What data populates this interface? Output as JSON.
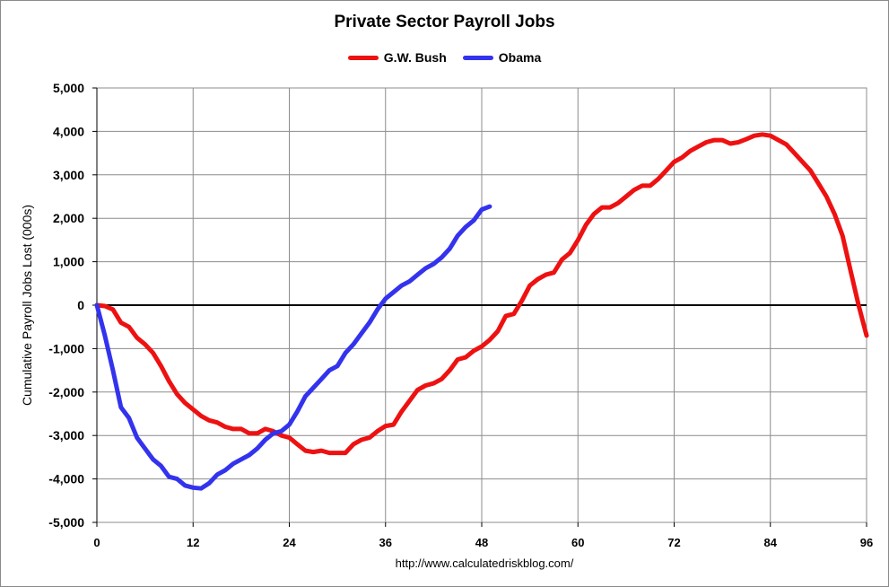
{
  "chart_data": {
    "type": "line",
    "title": "Private Sector Payroll Jobs",
    "xlabel": "",
    "ylabel": "Cumulative Payroll Jobs Lost (000s)",
    "xlim": [
      0,
      96
    ],
    "ylim": [
      -5000,
      5000
    ],
    "x_ticks": [
      "0",
      "12",
      "24",
      "36",
      "48",
      "60",
      "72",
      "84",
      "96"
    ],
    "y_ticks": [
      "5,000",
      "4,000",
      "3,000",
      "2,000",
      "1,000",
      "0",
      "-1,000",
      "-2,000",
      "-3,000",
      "-4,000",
      "-5,000"
    ],
    "grid": true,
    "legend_position": "top-center",
    "series": [
      {
        "name": "G.W. Bush",
        "color": "#ee1111",
        "points": [
          [
            0,
            0
          ],
          [
            1,
            -20
          ],
          [
            2,
            -100
          ],
          [
            3,
            -400
          ],
          [
            4,
            -500
          ],
          [
            5,
            -750
          ],
          [
            6,
            -900
          ],
          [
            7,
            -1100
          ],
          [
            8,
            -1400
          ],
          [
            9,
            -1750
          ],
          [
            10,
            -2050
          ],
          [
            11,
            -2250
          ],
          [
            12,
            -2400
          ],
          [
            13,
            -2550
          ],
          [
            14,
            -2650
          ],
          [
            15,
            -2700
          ],
          [
            16,
            -2800
          ],
          [
            17,
            -2850
          ],
          [
            18,
            -2850
          ],
          [
            19,
            -2950
          ],
          [
            20,
            -2950
          ],
          [
            21,
            -2850
          ],
          [
            22,
            -2900
          ],
          [
            23,
            -3000
          ],
          [
            24,
            -3050
          ],
          [
            25,
            -3200
          ],
          [
            26,
            -3350
          ],
          [
            27,
            -3380
          ],
          [
            28,
            -3350
          ],
          [
            29,
            -3400
          ],
          [
            30,
            -3400
          ],
          [
            31,
            -3400
          ],
          [
            32,
            -3200
          ],
          [
            33,
            -3100
          ],
          [
            34,
            -3050
          ],
          [
            35,
            -2900
          ],
          [
            36,
            -2780
          ],
          [
            37,
            -2750
          ],
          [
            38,
            -2450
          ],
          [
            39,
            -2200
          ],
          [
            40,
            -1950
          ],
          [
            41,
            -1850
          ],
          [
            42,
            -1800
          ],
          [
            43,
            -1700
          ],
          [
            44,
            -1500
          ],
          [
            45,
            -1250
          ],
          [
            46,
            -1200
          ],
          [
            47,
            -1050
          ],
          [
            48,
            -950
          ],
          [
            49,
            -800
          ],
          [
            50,
            -600
          ],
          [
            51,
            -250
          ],
          [
            52,
            -200
          ],
          [
            53,
            100
          ],
          [
            54,
            450
          ],
          [
            55,
            600
          ],
          [
            56,
            700
          ],
          [
            57,
            750
          ],
          [
            58,
            1050
          ],
          [
            59,
            1200
          ],
          [
            60,
            1500
          ],
          [
            61,
            1850
          ],
          [
            62,
            2100
          ],
          [
            63,
            2250
          ],
          [
            64,
            2250
          ],
          [
            65,
            2350
          ],
          [
            66,
            2500
          ],
          [
            67,
            2650
          ],
          [
            68,
            2750
          ],
          [
            69,
            2750
          ],
          [
            70,
            2900
          ],
          [
            71,
            3100
          ],
          [
            72,
            3300
          ],
          [
            73,
            3400
          ],
          [
            74,
            3550
          ],
          [
            75,
            3650
          ],
          [
            76,
            3750
          ],
          [
            77,
            3800
          ],
          [
            78,
            3800
          ],
          [
            79,
            3720
          ],
          [
            80,
            3750
          ],
          [
            81,
            3820
          ],
          [
            82,
            3900
          ],
          [
            83,
            3930
          ],
          [
            84,
            3900
          ],
          [
            85,
            3800
          ],
          [
            86,
            3700
          ],
          [
            87,
            3500
          ],
          [
            88,
            3300
          ],
          [
            89,
            3100
          ],
          [
            90,
            2800
          ],
          [
            91,
            2500
          ],
          [
            92,
            2100
          ],
          [
            93,
            1600
          ],
          [
            94,
            800
          ],
          [
            95,
            0
          ],
          [
            96,
            -700
          ]
        ]
      },
      {
        "name": "Obama",
        "color": "#3333ee",
        "points": [
          [
            0,
            0
          ],
          [
            1,
            -700
          ],
          [
            2,
            -1500
          ],
          [
            3,
            -2350
          ],
          [
            4,
            -2600
          ],
          [
            5,
            -3050
          ],
          [
            6,
            -3300
          ],
          [
            7,
            -3550
          ],
          [
            8,
            -3700
          ],
          [
            9,
            -3950
          ],
          [
            10,
            -4000
          ],
          [
            11,
            -4150
          ],
          [
            12,
            -4200
          ],
          [
            13,
            -4220
          ],
          [
            14,
            -4100
          ],
          [
            15,
            -3900
          ],
          [
            16,
            -3800
          ],
          [
            17,
            -3650
          ],
          [
            18,
            -3550
          ],
          [
            19,
            -3450
          ],
          [
            20,
            -3300
          ],
          [
            21,
            -3100
          ],
          [
            22,
            -2950
          ],
          [
            23,
            -2900
          ],
          [
            24,
            -2750
          ],
          [
            25,
            -2450
          ],
          [
            26,
            -2100
          ],
          [
            27,
            -1900
          ],
          [
            28,
            -1700
          ],
          [
            29,
            -1500
          ],
          [
            30,
            -1400
          ],
          [
            31,
            -1100
          ],
          [
            32,
            -900
          ],
          [
            33,
            -650
          ],
          [
            34,
            -400
          ],
          [
            35,
            -100
          ],
          [
            36,
            150
          ],
          [
            37,
            300
          ],
          [
            38,
            450
          ],
          [
            39,
            550
          ],
          [
            40,
            700
          ],
          [
            41,
            850
          ],
          [
            42,
            950
          ],
          [
            43,
            1100
          ],
          [
            44,
            1300
          ],
          [
            45,
            1600
          ],
          [
            46,
            1800
          ],
          [
            47,
            1950
          ],
          [
            48,
            2200
          ],
          [
            49,
            2270
          ]
        ]
      }
    ],
    "source_url": "http://www.calculatedriskblog.com/"
  }
}
